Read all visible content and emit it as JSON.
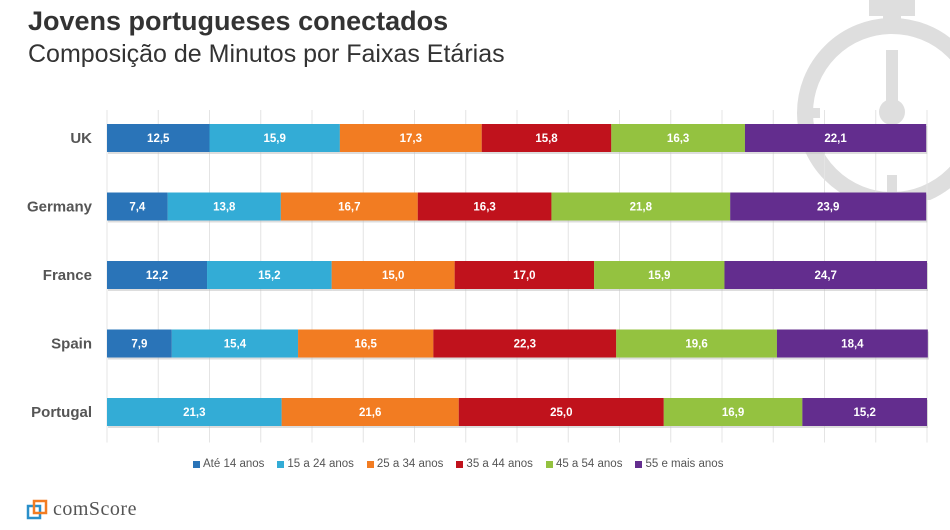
{
  "header": {
    "title": "Jovens portugueses conectados",
    "subtitle": "Composição de Minutos por Faixas Etárias"
  },
  "chart_data": {
    "type": "bar",
    "orientation": "horizontal",
    "stacked": true,
    "title": "Jovens portugueses conectados",
    "subtitle": "Composição de Minutos por Faixas Etárias",
    "categories": [
      "UK",
      "Germany",
      "France",
      "Spain",
      "Portugal"
    ],
    "xlim": [
      0,
      100
    ],
    "grid": true,
    "legend_position": "bottom",
    "series": [
      {
        "name": "Até 14 anos",
        "color": "#2a74b8",
        "values": [
          12.5,
          7.4,
          12.2,
          7.9,
          0
        ]
      },
      {
        "name": "15 a 24 anos",
        "color": "#33acd6",
        "values": [
          15.9,
          13.8,
          15.2,
          15.4,
          21.3
        ]
      },
      {
        "name": "25 a 34 anos",
        "color": "#f27c22",
        "values": [
          17.3,
          16.7,
          15.0,
          16.5,
          21.6
        ]
      },
      {
        "name": "35 a 44 anos",
        "color": "#c0121c",
        "values": [
          15.8,
          16.3,
          17.0,
          22.3,
          25.0
        ]
      },
      {
        "name": "45 a 54 anos",
        "color": "#94c240",
        "values": [
          16.3,
          21.8,
          15.9,
          19.6,
          16.9
        ]
      },
      {
        "name": "55 e mais anos",
        "color": "#632d8e",
        "values": [
          22.1,
          23.9,
          24.7,
          18.4,
          15.2
        ]
      }
    ],
    "data_labels": [
      [
        "12,5",
        "15,9",
        "17,3",
        "15,8",
        "16,3",
        "22,1"
      ],
      [
        "7,4",
        "13,8",
        "16,7",
        "16,3",
        "21,8",
        "23,9"
      ],
      [
        "12,2",
        "15,2",
        "15,0",
        "17,0",
        "15,9",
        "24,7"
      ],
      [
        "7,9",
        "15,4",
        "16,5",
        "22,3",
        "19,6",
        "18,4"
      ],
      [
        "",
        "21,3",
        "21,6",
        "25,0",
        "16,9",
        "15,2"
      ]
    ]
  },
  "logo": {
    "text": "comScore",
    "icon": "comscore-cube-logo"
  },
  "background_icon": "stopwatch-icon"
}
